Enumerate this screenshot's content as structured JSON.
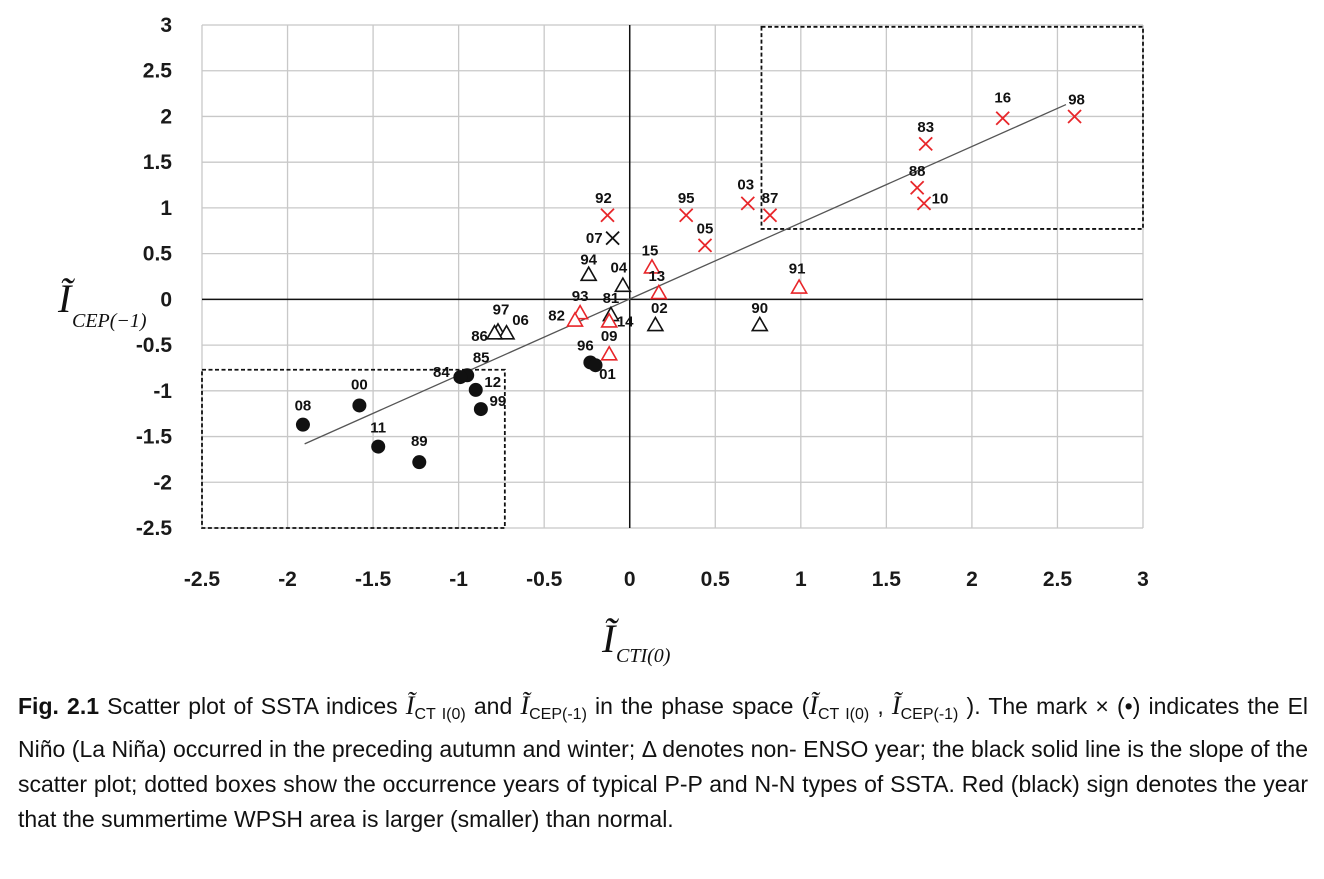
{
  "chart_data": {
    "type": "scatter",
    "xlim": [
      -2.5,
      3
    ],
    "ylim": [
      -2.5,
      3
    ],
    "x_ticks": [
      "-2.5",
      "-2",
      "-1.5",
      "-1",
      "-0.5",
      "0",
      "0.5",
      "1",
      "1.5",
      "2",
      "2.5",
      "3"
    ],
    "y_ticks": [
      "3",
      "2.5",
      "2",
      "1.5",
      "1",
      "0.5",
      "0",
      "-0.5",
      "-1",
      "-1.5",
      "-2",
      "-2.5"
    ],
    "xlabel": {
      "symbol": "Ĩ",
      "sub": "CTI(0)"
    },
    "ylabel": {
      "symbol": "Ĩ",
      "sub": "CEP(−1)"
    },
    "grid": true,
    "colors": {
      "red": "#e8262a",
      "black": "#111111",
      "line": "#555555",
      "grid": "#c8c8c8"
    },
    "regression_line": {
      "x": [
        -1.9,
        2.55
      ],
      "y": [
        -1.58,
        2.13
      ]
    },
    "boxes": [
      {
        "x": [
          0.77,
          3.0
        ],
        "y": [
          0.77,
          2.98
        ]
      },
      {
        "x": [
          -2.5,
          -0.73
        ],
        "y": [
          -2.5,
          -0.77
        ]
      }
    ],
    "points": [
      {
        "label": "16",
        "x": 2.18,
        "y": 1.98,
        "marker": "x",
        "color": "red"
      },
      {
        "label": "98",
        "x": 2.6,
        "y": 2.0,
        "marker": "x",
        "color": "red"
      },
      {
        "label": "83",
        "x": 1.73,
        "y": 1.7,
        "marker": "x",
        "color": "red"
      },
      {
        "label": "88",
        "x": 1.68,
        "y": 1.22,
        "marker": "x",
        "color": "red"
      },
      {
        "label": "10",
        "x": 1.72,
        "y": 1.05,
        "marker": "x",
        "color": "red"
      },
      {
        "label": "03",
        "x": 0.69,
        "y": 1.05,
        "marker": "x",
        "color": "red"
      },
      {
        "label": "87",
        "x": 0.82,
        "y": 0.92,
        "marker": "x",
        "color": "red"
      },
      {
        "label": "95",
        "x": 0.33,
        "y": 0.92,
        "marker": "x",
        "color": "red"
      },
      {
        "label": "05",
        "x": 0.44,
        "y": 0.59,
        "marker": "x",
        "color": "red"
      },
      {
        "label": "92",
        "x": -0.13,
        "y": 0.92,
        "marker": "x",
        "color": "red"
      },
      {
        "label": "07",
        "x": -0.1,
        "y": 0.67,
        "marker": "x",
        "color": "black"
      },
      {
        "label": "15",
        "x": 0.13,
        "y": 0.35,
        "marker": "triangle",
        "color": "red"
      },
      {
        "label": "13",
        "x": 0.17,
        "y": 0.07,
        "marker": "triangle",
        "color": "red"
      },
      {
        "label": "91",
        "x": 0.99,
        "y": 0.13,
        "marker": "triangle",
        "color": "red"
      },
      {
        "label": "94",
        "x": -0.24,
        "y": 0.27,
        "marker": "triangle",
        "color": "black"
      },
      {
        "label": "04",
        "x": -0.04,
        "y": 0.15,
        "marker": "triangle",
        "color": "black"
      },
      {
        "label": "81",
        "x": -0.11,
        "y": -0.17,
        "marker": "triangle",
        "color": "black"
      },
      {
        "label": "93",
        "x": -0.29,
        "y": -0.15,
        "marker": "triangle",
        "color": "red"
      },
      {
        "label": "82",
        "x": -0.32,
        "y": -0.23,
        "marker": "triangle",
        "color": "red"
      },
      {
        "label": "14",
        "x": -0.12,
        "y": -0.24,
        "marker": "triangle",
        "color": "red"
      },
      {
        "label": "02",
        "x": 0.15,
        "y": -0.28,
        "marker": "triangle",
        "color": "black"
      },
      {
        "label": "90",
        "x": 0.76,
        "y": -0.28,
        "marker": "triangle",
        "color": "black"
      },
      {
        "label": "09",
        "x": -0.12,
        "y": -0.6,
        "marker": "triangle",
        "color": "red"
      },
      {
        "label": "97",
        "x": -0.77,
        "y": -0.35,
        "marker": "triangle",
        "color": "black"
      },
      {
        "label": "06",
        "x": -0.72,
        "y": -0.37,
        "marker": "triangle",
        "color": "black"
      },
      {
        "label": "86",
        "x": -0.79,
        "y": -0.37,
        "marker": "triangle",
        "color": "black"
      },
      {
        "label": "96",
        "x": -0.23,
        "y": -0.69,
        "marker": "dot",
        "color": "black"
      },
      {
        "label": "01",
        "x": -0.2,
        "y": -0.72,
        "marker": "dot",
        "color": "black"
      },
      {
        "label": "85",
        "x": -0.95,
        "y": -0.83,
        "marker": "dot",
        "color": "black"
      },
      {
        "label": "84",
        "x": -0.99,
        "y": -0.85,
        "marker": "dot",
        "color": "black"
      },
      {
        "label": "12",
        "x": -0.9,
        "y": -0.99,
        "marker": "dot",
        "color": "black"
      },
      {
        "label": "99",
        "x": -0.87,
        "y": -1.2,
        "marker": "dot",
        "color": "black"
      },
      {
        "label": "00",
        "x": -1.58,
        "y": -1.16,
        "marker": "dot",
        "color": "black"
      },
      {
        "label": "08",
        "x": -1.91,
        "y": -1.37,
        "marker": "dot",
        "color": "black"
      },
      {
        "label": "11",
        "x": -1.47,
        "y": -1.61,
        "marker": "dot",
        "color": "black"
      },
      {
        "label": "89",
        "x": -1.23,
        "y": -1.78,
        "marker": "dot",
        "color": "black"
      }
    ]
  },
  "caption": {
    "fig": "Fig. 2.1",
    "t1": " Scatter plot of SSTA indices ",
    "s1": "Ĩ",
    "s1sub": "CT I(0)",
    "t2": "  and ",
    "s2": "Ĩ",
    "s2sub": "CEP(-1)",
    "t3": " in the phase  space (",
    "s3": "Ĩ",
    "s3sub": "CT I(0)",
    "t4": " , ",
    "s4": "Ĩ",
    "s4sub": "CEP(-1)",
    "t5": " ). The mark × (•) indicates the El Niño (La  Niña) occurred in the preceding autumn and winter; Δ denotes non- ENSO year; the black solid line is the slope of the scatter plot; dotted  boxes show the occurrence years of typical P-P and N-N types of  SSTA. Red (black) sign denotes the year that the summertime WPSH  area is larger (smaller) than normal."
  }
}
